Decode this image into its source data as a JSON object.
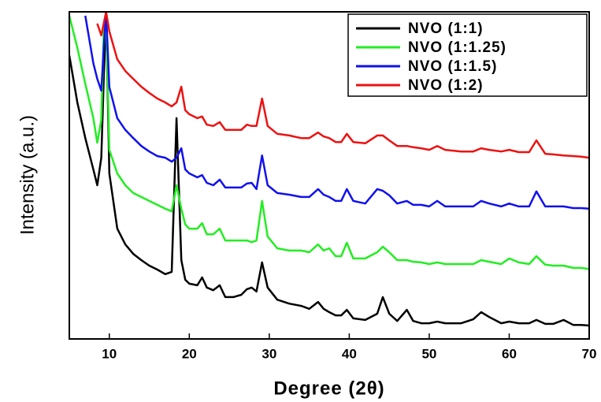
{
  "chart_data": {
    "type": "line",
    "xlabel": "Degree (2θ)",
    "ylabel": "Intensity (a.u.)",
    "xlim": [
      5,
      70
    ],
    "xticks": [
      10,
      20,
      30,
      40,
      50,
      60,
      70
    ],
    "ylim": [
      0,
      100
    ],
    "legend": "upper right",
    "x": [
      5,
      6,
      7,
      8,
      8.5,
      9,
      9.3,
      9.6,
      10,
      11,
      12,
      13,
      14,
      15,
      16,
      17,
      17.8,
      18.4,
      19,
      19.5,
      20,
      21,
      21.6,
      22.2,
      23,
      23.8,
      24.5,
      25.5,
      26.5,
      27.2,
      27.8,
      28.4,
      29.1,
      29.8,
      31,
      32.5,
      34,
      35,
      36.1,
      36.8,
      37.5,
      38.3,
      39,
      39.7,
      40.5,
      42,
      43.5,
      44.2,
      45,
      46,
      47.2,
      48,
      49,
      50,
      51,
      52,
      54,
      55.5,
      56.5,
      57.5,
      59,
      60,
      61.2,
      62.5,
      63.4,
      64.5,
      65.5,
      66.8,
      68,
      69,
      70
    ],
    "series": [
      {
        "name": "NVO (1:1)",
        "color": "#000000",
        "values": [
          86.7,
          72.3,
          61.4,
          51.8,
          47,
          55.4,
          79.5,
          100,
          50.6,
          33.7,
          28.9,
          26,
          24.1,
          22.4,
          21.2,
          19.8,
          20.5,
          67.5,
          24.1,
          18.1,
          16.9,
          16.4,
          18.8,
          15.7,
          14.9,
          16.4,
          12.8,
          12.8,
          13.5,
          15.2,
          15.7,
          14.5,
          23.4,
          15.7,
          12,
          10.8,
          10.1,
          9.2,
          11.3,
          9.2,
          8.2,
          7.2,
          7.2,
          8.9,
          6.3,
          5.8,
          7.7,
          12.8,
          7.7,
          5.5,
          8.9,
          5.5,
          4.8,
          4.8,
          5.3,
          4.8,
          4.8,
          6,
          8.2,
          6.7,
          4.8,
          5.3,
          4.8,
          4.8,
          5.8,
          4.6,
          4.6,
          5.8,
          4.3,
          4.3,
          4.1
        ]
      },
      {
        "name": "NVO (1:1.25)",
        "color": "#22ee22",
        "values": [
          98.8,
          89,
          78,
          67.5,
          60,
          67,
          94,
          100,
          57.8,
          50.6,
          47,
          44.6,
          43.4,
          42.2,
          41,
          39.8,
          39,
          47,
          39.8,
          35,
          33.7,
          33.7,
          35.4,
          32,
          32,
          33.7,
          30.1,
          30.1,
          30.1,
          30.1,
          29.6,
          30.1,
          42.2,
          31.3,
          27.7,
          27,
          27,
          26.5,
          28.9,
          27,
          27.7,
          25.3,
          25.3,
          29.4,
          24.6,
          24.6,
          26.5,
          28.2,
          26.5,
          24.1,
          24.1,
          23.6,
          23.4,
          22.9,
          23.4,
          22.9,
          22.9,
          22.9,
          24.1,
          23.6,
          22.9,
          24.6,
          23.4,
          22.9,
          25.3,
          22.7,
          22.4,
          22.4,
          21.7,
          21.7,
          21.4
        ]
      },
      {
        "name": "NVO (1:1.5)",
        "color": "#1111ee",
        "values": [
          null,
          null,
          98.8,
          84.3,
          79.5,
          75.9,
          89,
          100,
          77,
          67.5,
          63.9,
          61.4,
          59,
          57.3,
          55.9,
          55.4,
          54.2,
          55.4,
          58.3,
          51.8,
          50.6,
          49.4,
          50.1,
          47.7,
          47,
          48.7,
          46.3,
          46.3,
          46.3,
          47.5,
          47.7,
          45.8,
          56.1,
          47,
          44.6,
          44.1,
          43.4,
          43.4,
          45.8,
          44.1,
          43.4,
          42.2,
          42.2,
          45.8,
          42.2,
          41.4,
          45.8,
          45.3,
          43.9,
          41.4,
          42.2,
          41,
          41,
          40.5,
          42.2,
          40.5,
          40.5,
          40.5,
          42.2,
          41.4,
          40.5,
          41.4,
          40.5,
          40.5,
          45.1,
          40.5,
          40.5,
          40.5,
          40,
          40,
          39.8
        ]
      },
      {
        "name": "NVO (1:2)",
        "color": "#ee1111",
        "values": [
          null,
          null,
          null,
          null,
          96.4,
          92.8,
          96.4,
          100,
          94,
          85.5,
          81.9,
          79.5,
          77.1,
          75.2,
          73.5,
          72.3,
          71.1,
          72.3,
          77.1,
          69.9,
          68.7,
          67.5,
          68,
          65.5,
          65.1,
          66.3,
          63.9,
          63.9,
          63.9,
          65.5,
          65.1,
          65.1,
          73.5,
          65.1,
          62.7,
          62.2,
          61.4,
          61.4,
          63.1,
          61.9,
          61.4,
          60.2,
          60.2,
          62.7,
          60.2,
          59.8,
          62.2,
          62.2,
          60.7,
          59,
          59,
          58.6,
          58.3,
          57.8,
          59,
          57.8,
          57.3,
          57.3,
          58.3,
          57.8,
          57.3,
          57.8,
          57.1,
          57.1,
          60.7,
          56.6,
          56.4,
          56.1,
          55.9,
          55.7,
          55.4
        ]
      }
    ]
  }
}
